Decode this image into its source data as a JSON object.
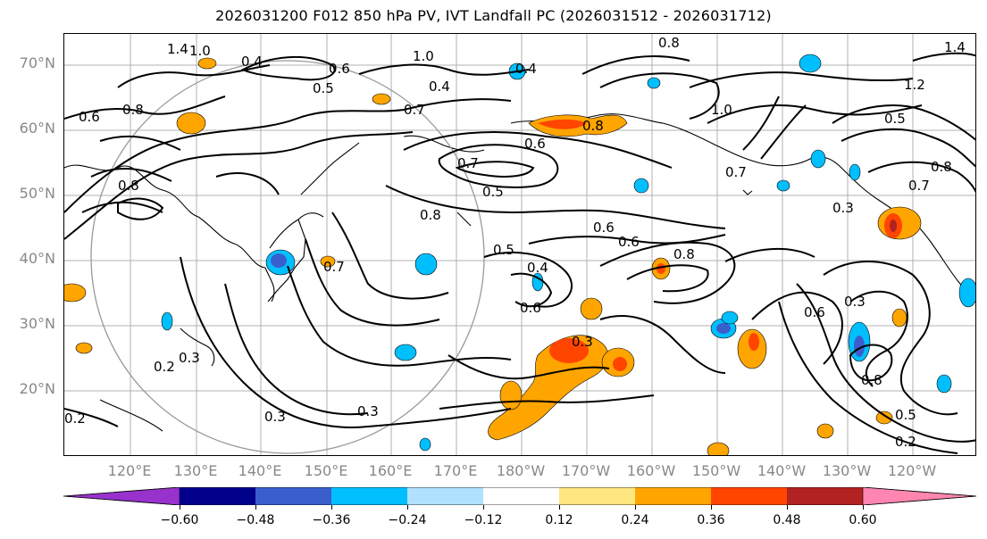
{
  "title": "2026031200 F012 850 hPa PV, IVT Landfall PC (2026031512 - 2026031712)",
  "map": {
    "projection": "PlateCarree (Pacific-centered)",
    "lat_labels": [
      "70°N",
      "60°N",
      "50°N",
      "40°N",
      "30°N",
      "20°N"
    ],
    "lon_labels": [
      "120°E",
      "130°E",
      "140°E",
      "150°E",
      "160°E",
      "170°E",
      "180°W",
      "170°W",
      "160°W",
      "150°W",
      "140°W",
      "130°W",
      "120°W"
    ],
    "gridlines": true,
    "grid_color": "#a0a0a0",
    "contour_labels": [
      "1.4",
      "1.0",
      "0.4",
      "0.6",
      "0.5",
      "0.4",
      "0.8",
      "1.0",
      "0.6",
      "0.8",
      "0.7",
      "0.6",
      "0.8",
      "0.4",
      "0.7",
      "0.5",
      "0.8",
      "0.7",
      "0.6",
      "0.5",
      "0.4",
      "0.6",
      "0.3",
      "0.3",
      "0.3",
      "0.3",
      "0.2",
      "0.2",
      "0.3",
      "0.8",
      "0.7",
      "0.6",
      "0.3",
      "0.6",
      "0.8",
      "0.5",
      "0.2",
      "0.8",
      "1.0",
      "0.5",
      "0.7",
      "0.8",
      "1.4",
      "1.2"
    ]
  },
  "colorbar": {
    "tick_labels": [
      "−0.60",
      "−0.48",
      "−0.36",
      "−0.24",
      "−0.12",
      "0.12",
      "0.24",
      "0.36",
      "0.48",
      "0.60"
    ],
    "colors": [
      "#9932cc",
      "#00008b",
      "#3a5fcd",
      "#00bfff",
      "#b0e2ff",
      "#ffffff",
      "#ffe680",
      "#ffa500",
      "#ff4500",
      "#b22222",
      "#ff86b0"
    ]
  }
}
